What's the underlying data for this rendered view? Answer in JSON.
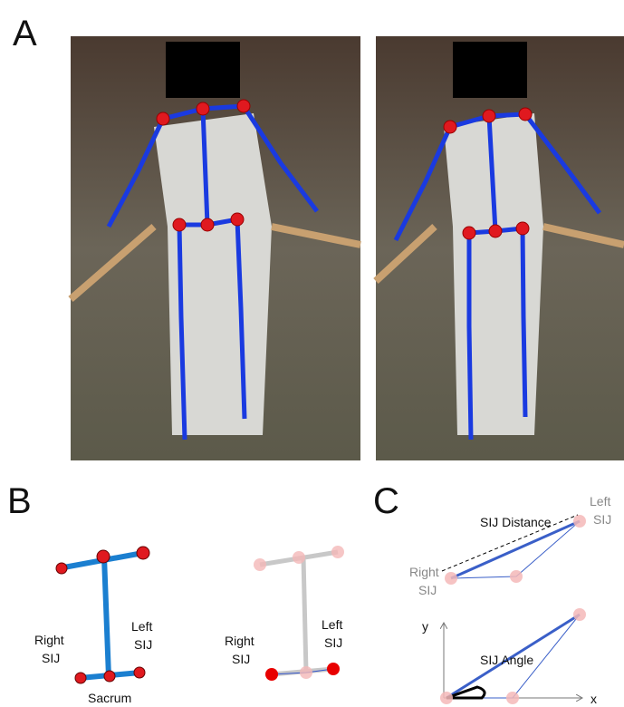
{
  "panels": {
    "a": {
      "letter": "A"
    },
    "b": {
      "letter": "B",
      "left": {
        "right_label": [
          "Right",
          "SIJ"
        ],
        "left_label": [
          "Left",
          "SIJ"
        ],
        "bottom_label": "Sacrum"
      },
      "right": {
        "right_label": [
          "Right",
          "SIJ"
        ],
        "left_label": [
          "Left",
          "SIJ"
        ]
      }
    },
    "c": {
      "letter": "C",
      "top": {
        "title": "SIJ Distance",
        "left_label": [
          "Left",
          "SIJ"
        ],
        "right_label": [
          "Right",
          "SIJ"
        ]
      },
      "bottom": {
        "title": "SIJ Angle",
        "y_axis": "y",
        "x_axis": "x"
      }
    }
  }
}
